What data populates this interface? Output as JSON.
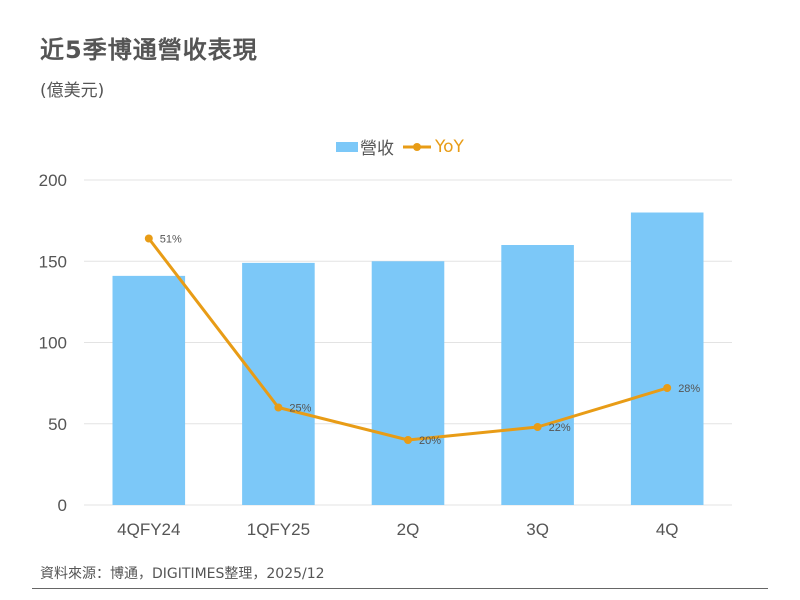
{
  "header": {
    "title": "近5季博通營收表現",
    "subtitle": "(億美元)"
  },
  "legend": {
    "revenue_label": "營收",
    "yoy_label": "YoY"
  },
  "footer": {
    "source": "資料來源：博通，DIGITIMES整理，2025/12"
  },
  "colors": {
    "bar": "#7cc8f8",
    "line": "#e89c16",
    "grid": "#e3e3e3"
  },
  "chart_data": {
    "type": "bar",
    "title": "近5季博通營收表現",
    "subtitle": "(億美元)",
    "categories": [
      "4QFY24",
      "1QFY25",
      "2Q",
      "3Q",
      "4Q"
    ],
    "ylim": [
      0,
      200
    ],
    "yticks": [
      0,
      50,
      100,
      150,
      200
    ],
    "grid": true,
    "legend_position": "top-center",
    "series": [
      {
        "name": "營收",
        "type": "bar",
        "values": [
          141,
          149,
          150,
          160,
          180
        ]
      },
      {
        "name": "YoY",
        "type": "line",
        "values": [
          51,
          25,
          20,
          22,
          28
        ],
        "labels": [
          "51%",
          "25%",
          "20%",
          "22%",
          "28%"
        ],
        "secondary_axis_range": [
          10,
          60
        ]
      }
    ]
  }
}
